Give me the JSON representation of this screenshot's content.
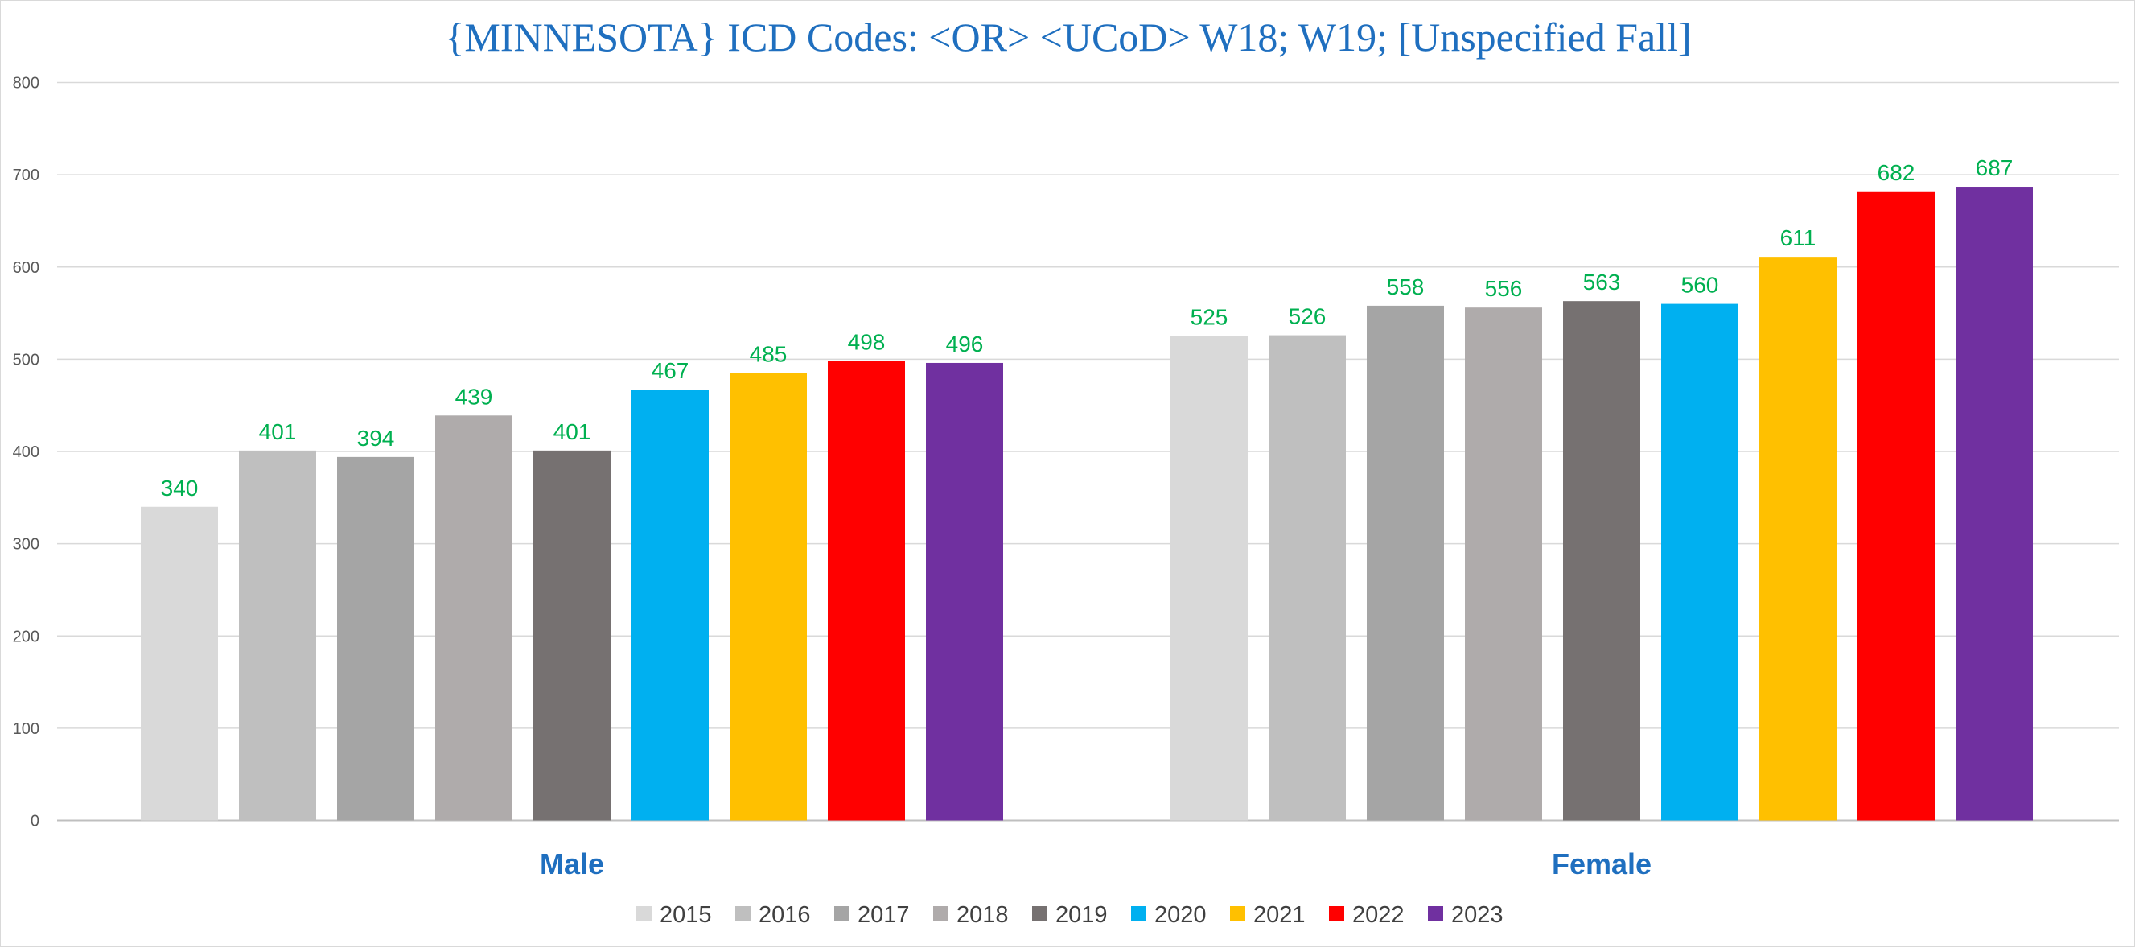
{
  "chart_data": {
    "type": "bar",
    "title": "{MINNESOTA}  ICD Codes: <OR> <UCoD> W18; W19;  [Unspecified Fall]",
    "xlabel": "",
    "ylabel": "",
    "ylim": [
      0,
      800
    ],
    "yticks": [
      0,
      100,
      200,
      300,
      400,
      500,
      600,
      700,
      800
    ],
    "grid": true,
    "legend_position": "bottom",
    "categories": [
      "Male",
      "Female"
    ],
    "series": [
      {
        "name": "2015",
        "color": "#d9d9d9",
        "values": [
          340,
          525
        ]
      },
      {
        "name": "2016",
        "color": "#bfbfbf",
        "values": [
          401,
          526
        ]
      },
      {
        "name": "2017",
        "color": "#a5a5a5",
        "values": [
          394,
          558
        ]
      },
      {
        "name": "2018",
        "color": "#afabab",
        "values": [
          439,
          556
        ]
      },
      {
        "name": "2019",
        "color": "#767171",
        "values": [
          401,
          563
        ]
      },
      {
        "name": "2020",
        "color": "#00b0f0",
        "values": [
          467,
          560
        ]
      },
      {
        "name": "2021",
        "color": "#ffc000",
        "values": [
          485,
          611
        ]
      },
      {
        "name": "2022",
        "color": "#ff0000",
        "values": [
          498,
          682
        ]
      },
      {
        "name": "2023",
        "color": "#7030a0",
        "values": [
          496,
          687
        ]
      }
    ],
    "data_label_color": "#00b050",
    "category_label_color": "#1f6fbf",
    "title_color": "#1f6fbf"
  }
}
